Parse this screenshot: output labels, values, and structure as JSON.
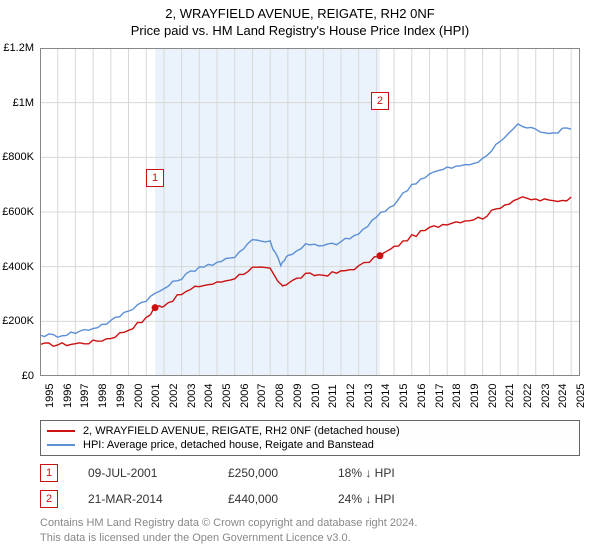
{
  "title": "2, WRAYFIELD AVENUE, REIGATE, RH2 0NF",
  "subtitle": "Price paid vs. HM Land Registry's House Price Index (HPI)",
  "chart": {
    "type": "line",
    "background_color": "#ffffff",
    "grid_color": "#d8d8d8",
    "shaded_band_color": "#eaf3fb",
    "shaded_x_range": [
      2001.5,
      2014.2
    ],
    "xlim": [
      1995,
      2025.5
    ],
    "ylim": [
      0,
      1200000
    ],
    "y_ticks": [
      0,
      200000,
      400000,
      600000,
      800000,
      1000000,
      1200000
    ],
    "y_tick_labels": [
      "£0",
      "£200K",
      "£400K",
      "£600K",
      "£800K",
      "£1M",
      "£1.2M"
    ],
    "x_ticks": [
      1995,
      1996,
      1997,
      1998,
      1999,
      2000,
      2001,
      2002,
      2003,
      2004,
      2005,
      2006,
      2007,
      2008,
      2009,
      2010,
      2011,
      2012,
      2013,
      2014,
      2015,
      2016,
      2017,
      2018,
      2019,
      2020,
      2021,
      2022,
      2023,
      2024,
      2025
    ],
    "tick_fontsize": 11,
    "title_fontsize": 13,
    "series": [
      {
        "name": "property",
        "label": "2, WRAYFIELD AVENUE, REIGATE, RH2 0NF (detached house)",
        "color": "#cc1111",
        "line_width": 1.4,
        "data": [
          [
            1995,
            115000
          ],
          [
            1996,
            115000
          ],
          [
            1997,
            118000
          ],
          [
            1998,
            125000
          ],
          [
            1999,
            140000
          ],
          [
            2000,
            170000
          ],
          [
            2001,
            210000
          ],
          [
            2001.5,
            250000
          ],
          [
            2002,
            260000
          ],
          [
            2003,
            300000
          ],
          [
            2004,
            330000
          ],
          [
            2005,
            340000
          ],
          [
            2006,
            360000
          ],
          [
            2007,
            395000
          ],
          [
            2008,
            390000
          ],
          [
            2008.6,
            330000
          ],
          [
            2009,
            340000
          ],
          [
            2010,
            370000
          ],
          [
            2011,
            370000
          ],
          [
            2012,
            380000
          ],
          [
            2013,
            400000
          ],
          [
            2014.2,
            440000
          ],
          [
            2015,
            470000
          ],
          [
            2016,
            510000
          ],
          [
            2017,
            540000
          ],
          [
            2018,
            560000
          ],
          [
            2019,
            570000
          ],
          [
            2020,
            580000
          ],
          [
            2021,
            620000
          ],
          [
            2022,
            650000
          ],
          [
            2023,
            645000
          ],
          [
            2024,
            640000
          ],
          [
            2025,
            650000
          ]
        ]
      },
      {
        "name": "hpi",
        "label": "HPI: Average price, detached house, Reigate and Banstead",
        "color": "#5b8fd6",
        "line_width": 1.4,
        "data": [
          [
            1995,
            150000
          ],
          [
            1996,
            148000
          ],
          [
            1997,
            160000
          ],
          [
            1998,
            175000
          ],
          [
            1999,
            200000
          ],
          [
            2000,
            240000
          ],
          [
            2001,
            280000
          ],
          [
            2002,
            320000
          ],
          [
            2003,
            360000
          ],
          [
            2004,
            400000
          ],
          [
            2005,
            410000
          ],
          [
            2006,
            440000
          ],
          [
            2007,
            500000
          ],
          [
            2008,
            490000
          ],
          [
            2008.6,
            410000
          ],
          [
            2009,
            440000
          ],
          [
            2010,
            480000
          ],
          [
            2011,
            475000
          ],
          [
            2012,
            490000
          ],
          [
            2013,
            520000
          ],
          [
            2014,
            580000
          ],
          [
            2015,
            630000
          ],
          [
            2016,
            700000
          ],
          [
            2017,
            740000
          ],
          [
            2018,
            760000
          ],
          [
            2019,
            770000
          ],
          [
            2020,
            790000
          ],
          [
            2021,
            860000
          ],
          [
            2022,
            920000
          ],
          [
            2023,
            900000
          ],
          [
            2024,
            890000
          ],
          [
            2025,
            910000
          ]
        ]
      }
    ],
    "point_markers": [
      {
        "id": "1",
        "x": 2001.5,
        "y": 250000,
        "color": "#cc1111",
        "label_y_offset": -130
      },
      {
        "id": "2",
        "x": 2014.2,
        "y": 440000,
        "color": "#cc1111",
        "label_y_offset": -155
      }
    ]
  },
  "legend": {
    "border_color": "#666666",
    "rows": [
      {
        "color": "#cc1111",
        "label": "2, WRAYFIELD AVENUE, REIGATE, RH2 0NF (detached house)"
      },
      {
        "color": "#5b8fd6",
        "label": "HPI: Average price, detached house, Reigate and Banstead"
      }
    ]
  },
  "marker_table": [
    {
      "id": "1",
      "color": "#cc1111",
      "date": "09-JUL-2001",
      "price": "£250,000",
      "diff": "18% ↓ HPI"
    },
    {
      "id": "2",
      "color": "#cc1111",
      "date": "21-MAR-2014",
      "price": "£440,000",
      "diff": "24% ↓ HPI"
    }
  ],
  "footer": {
    "line1": "Contains HM Land Registry data © Crown copyright and database right 2024.",
    "line2": "This data is licensed under the Open Government Licence v3.0."
  }
}
